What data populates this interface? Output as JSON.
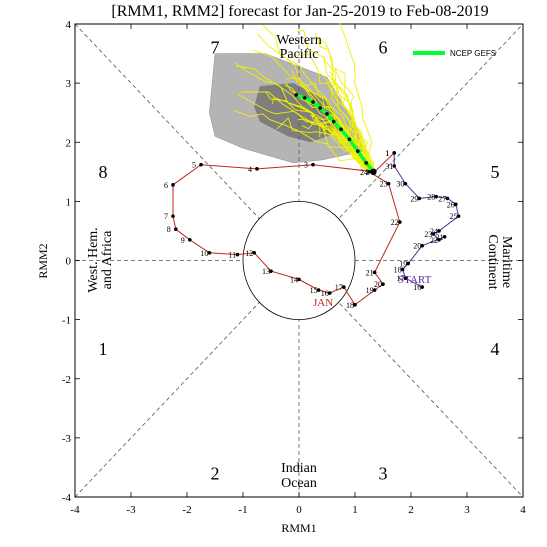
{
  "chart_data": {
    "type": "line",
    "title": "[RMM1, RMM2] forecast for Jan-25-2019 to Feb-08-2019",
    "xlabel": "RMM1",
    "ylabel": "RMM2",
    "xlim": [
      -4,
      4
    ],
    "ylim": [
      -4,
      4
    ],
    "x_ticks": [
      "-4",
      "-3",
      "-2",
      "-1",
      "0",
      "1",
      "2",
      "3",
      "4"
    ],
    "y_ticks": [
      "-4",
      "-3",
      "-2",
      "-1",
      "0",
      "1",
      "2",
      "3",
      "4"
    ],
    "phases": [
      {
        "label": "1",
        "x": -3.5,
        "y": -1.5
      },
      {
        "label": "2",
        "x": -1.5,
        "y": -3.6
      },
      {
        "label": "3",
        "x": 1.5,
        "y": -3.6
      },
      {
        "label": "4",
        "x": 3.5,
        "y": -1.5
      },
      {
        "label": "5",
        "x": 3.5,
        "y": 1.5
      },
      {
        "label": "6",
        "x": 1.5,
        "y": 3.6
      },
      {
        "label": "7",
        "x": -1.5,
        "y": 3.6
      },
      {
        "label": "8",
        "x": -3.5,
        "y": 1.5
      }
    ],
    "regions": {
      "top": [
        "Western",
        "Pacific"
      ],
      "bottom": [
        "Indian",
        "Ocean"
      ],
      "left": [
        "West. Hem.",
        "and Africa"
      ],
      "right": [
        "Maritime",
        "Continent"
      ]
    },
    "legend": {
      "label": "NCEP GEFS",
      "color": "#00ff33",
      "position": "top-right"
    },
    "purple_track": {
      "name": "START",
      "color": "#5a2aa8",
      "points": [
        {
          "d": "16",
          "x": 2.2,
          "y": -0.45
        },
        {
          "d": "17",
          "x": 1.9,
          "y": -0.3
        },
        {
          "d": "18",
          "x": 1.85,
          "y": -0.15
        },
        {
          "d": "19",
          "x": 1.95,
          "y": -0.05
        },
        {
          "d": "20",
          "x": 2.2,
          "y": 0.25
        },
        {
          "d": "21",
          "x": 2.6,
          "y": 0.4
        },
        {
          "d": "22",
          "x": 2.5,
          "y": 0.35
        },
        {
          "d": "23",
          "x": 2.4,
          "y": 0.45
        },
        {
          "d": "24",
          "x": 2.5,
          "y": 0.5
        },
        {
          "d": "25",
          "x": 2.85,
          "y": 0.75
        },
        {
          "d": "26",
          "x": 2.8,
          "y": 0.95
        },
        {
          "d": "27",
          "x": 2.65,
          "y": 1.05
        },
        {
          "d": "28",
          "x": 2.45,
          "y": 1.08
        },
        {
          "d": "29",
          "x": 2.15,
          "y": 1.05
        },
        {
          "d": "30",
          "x": 1.9,
          "y": 1.3
        },
        {
          "d": "31",
          "x": 1.7,
          "y": 1.6
        },
        {
          "d": "1",
          "x": 1.7,
          "y": 1.82
        }
      ]
    },
    "red_track": {
      "name": "JAN",
      "color": "#c0261e",
      "points": [
        {
          "d": "1",
          "x": 1.7,
          "y": 1.82
        },
        {
          "d": "2",
          "x": 1.35,
          "y": 1.5
        },
        {
          "d": "3",
          "x": 0.25,
          "y": 1.62
        },
        {
          "d": "4",
          "x": -0.75,
          "y": 1.55
        },
        {
          "d": "5",
          "x": -1.75,
          "y": 1.62
        },
        {
          "d": "6",
          "x": -2.25,
          "y": 1.28
        },
        {
          "d": "7",
          "x": -2.25,
          "y": 0.75
        },
        {
          "d": "8",
          "x": -2.2,
          "y": 0.53
        },
        {
          "d": "9",
          "x": -1.95,
          "y": 0.35
        },
        {
          "d": "10",
          "x": -1.6,
          "y": 0.13
        },
        {
          "d": "11",
          "x": -1.1,
          "y": 0.1
        },
        {
          "d": "12",
          "x": -0.8,
          "y": 0.13
        },
        {
          "d": "13",
          "x": -0.5,
          "y": -0.18
        },
        {
          "d": "14",
          "x": 0.0,
          "y": -0.32
        },
        {
          "d": "15",
          "x": 0.35,
          "y": -0.5
        },
        {
          "d": "16",
          "x": 0.55,
          "y": -0.55
        },
        {
          "d": "17",
          "x": 0.8,
          "y": -0.45
        },
        {
          "d": "18",
          "x": 1.0,
          "y": -0.75
        },
        {
          "d": "19",
          "x": 1.35,
          "y": -0.5
        },
        {
          "d": "20",
          "x": 1.5,
          "y": -0.4
        },
        {
          "d": "21",
          "x": 1.35,
          "y": -0.2
        },
        {
          "d": "22",
          "x": 1.8,
          "y": 0.65
        },
        {
          "d": "23",
          "x": 1.6,
          "y": 1.3
        },
        {
          "d": "24",
          "x": 1.25,
          "y": 1.5
        }
      ]
    },
    "green_forecast": {
      "x": [
        1.33,
        1.2,
        1.05,
        0.9,
        0.75,
        0.62,
        0.5,
        0.38,
        0.25,
        0.1,
        -0.05
      ],
      "y": [
        1.5,
        1.65,
        1.85,
        2.05,
        2.22,
        2.35,
        2.48,
        2.58,
        2.68,
        2.75,
        2.8
      ]
    },
    "gray_outer": [
      [
        -1.5,
        3.5
      ],
      [
        -0.6,
        3.5
      ],
      [
        0.5,
        3.1
      ],
      [
        1.0,
        2.3
      ],
      [
        1.15,
        1.85
      ],
      [
        0.4,
        1.7
      ],
      [
        -0.1,
        1.65
      ],
      [
        -1.0,
        1.9
      ],
      [
        -1.5,
        2.1
      ],
      [
        -1.6,
        2.5
      ]
    ],
    "gray_inner": [
      [
        -0.7,
        2.95
      ],
      [
        -0.1,
        3.0
      ],
      [
        0.5,
        2.7
      ],
      [
        0.8,
        2.2
      ],
      [
        0.2,
        2.0
      ],
      [
        -0.2,
        2.1
      ],
      [
        -0.7,
        2.35
      ],
      [
        -0.8,
        2.6
      ]
    ]
  }
}
